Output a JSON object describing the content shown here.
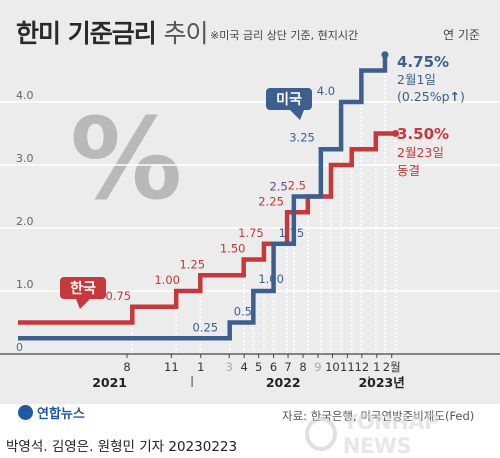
{
  "header": {
    "title_main": "한미 기준금리",
    "title_sub": "추이",
    "subtitle": "※미국 금리 상단 기준, 현지시간",
    "unit": "연 기준"
  },
  "footer": {
    "source": "자료: 한국은행, 미국연방준비제도(Fed)",
    "byline": "박영석. 김영은. 원형민 기자  20230223",
    "logo": "연합뉴스",
    "watermark": "YONHAP NEWS"
  },
  "decor": {
    "percent_glyph": "%"
  },
  "colors": {
    "us": "#3d5f8e",
    "kr": "#c5383c",
    "grid": "#ffffff",
    "panel": "#ececec",
    "axis": "#444444"
  },
  "chart_data": {
    "type": "line",
    "step": true,
    "title": "한미 기준금리 추이",
    "ylim": [
      0,
      4.75
    ],
    "yticks": [
      0,
      1.0,
      2.0,
      3.0,
      4.0
    ],
    "ytick_labels": [
      "0",
      "1.0",
      "2.0",
      "3.0",
      "4.0"
    ],
    "xlim": [
      "2021-01-01",
      "2023-02-28"
    ],
    "xticks": [
      {
        "date": "2021-08-15",
        "label": "8",
        "faded": false
      },
      {
        "date": "2021-11-15",
        "label": "11",
        "faded": false
      },
      {
        "date": "2022-01-15",
        "label": "1",
        "faded": false
      },
      {
        "date": "2022-03-15",
        "label": "3",
        "faded": true
      },
      {
        "date": "2022-04-15",
        "label": "4",
        "faded": false
      },
      {
        "date": "2022-05-15",
        "label": "5",
        "faded": false
      },
      {
        "date": "2022-06-15",
        "label": "6",
        "faded": false
      },
      {
        "date": "2022-07-15",
        "label": "7",
        "faded": false
      },
      {
        "date": "2022-08-15",
        "label": "8",
        "faded": false
      },
      {
        "date": "2022-09-15",
        "label": "9",
        "faded": true
      },
      {
        "date": "2022-10-15",
        "label": "10",
        "faded": false
      },
      {
        "date": "2022-11-15",
        "label": "11",
        "faded": false
      },
      {
        "date": "2022-12-15",
        "label": "12",
        "faded": false
      },
      {
        "date": "2023-01-15",
        "label": "1",
        "faded": false
      },
      {
        "date": "2023-02-15",
        "label": "2월",
        "faded": false
      }
    ],
    "year_labels": [
      {
        "date": "2021-07-10",
        "label": "2021"
      },
      {
        "date": "2022-07-05",
        "label": "2022"
      },
      {
        "date": "2023-01-25",
        "label": "2023년"
      }
    ],
    "series": [
      {
        "name": "미국",
        "color": "#3d5f8e",
        "points": [
          {
            "x": "2021-01-01",
            "y": 0.25
          },
          {
            "x": "2022-03-16",
            "y": 0.5
          },
          {
            "x": "2022-05-04",
            "y": 1.0
          },
          {
            "x": "2022-06-15",
            "y": 1.75
          },
          {
            "x": "2022-07-27",
            "y": 2.5
          },
          {
            "x": "2022-09-21",
            "y": 3.25
          },
          {
            "x": "2022-11-02",
            "y": 4.0
          },
          {
            "x": "2022-12-14",
            "y": 4.5
          },
          {
            "x": "2023-02-01",
            "y": 4.75
          }
        ],
        "labels": [
          "0.25",
          "0.5",
          "1.00",
          "1.75",
          "2.5",
          "3.25",
          "4.0"
        ],
        "end_value": "4.75%",
        "end_note_1": "2월1일",
        "end_note_2": "(0.25%p",
        "end_arrow": "↑",
        "end_note_close": ")"
      },
      {
        "name": "한국",
        "color": "#c5383c",
        "points": [
          {
            "x": "2021-01-01",
            "y": 0.5
          },
          {
            "x": "2021-08-26",
            "y": 0.75
          },
          {
            "x": "2021-11-25",
            "y": 1.0
          },
          {
            "x": "2022-01-14",
            "y": 1.25
          },
          {
            "x": "2022-04-14",
            "y": 1.5
          },
          {
            "x": "2022-05-26",
            "y": 1.75
          },
          {
            "x": "2022-07-13",
            "y": 2.25
          },
          {
            "x": "2022-08-25",
            "y": 2.5
          },
          {
            "x": "2022-10-12",
            "y": 3.0
          },
          {
            "x": "2022-11-24",
            "y": 3.25
          },
          {
            "x": "2023-01-13",
            "y": 3.5
          },
          {
            "x": "2023-02-23",
            "y": 3.5
          }
        ],
        "labels": [
          "0.75",
          "1.00",
          "1.25",
          "1.50",
          "1.75",
          "2.25",
          "2.5"
        ],
        "end_value": "3.50%",
        "end_note_1": "2월23일",
        "end_note_2": "동결"
      }
    ]
  }
}
